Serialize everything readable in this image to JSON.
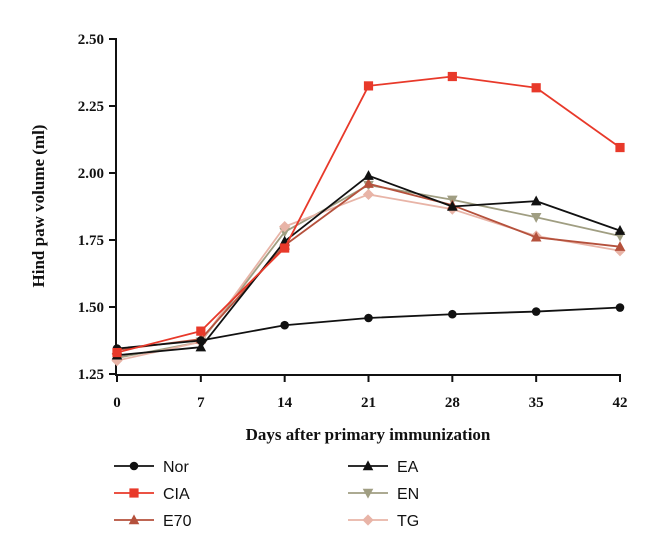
{
  "chart_data": {
    "type": "line",
    "xlabel": "Days after primary immunization",
    "ylabel": "Hind paw volume (ml)",
    "x": [
      0,
      7,
      14,
      21,
      28,
      35,
      42
    ],
    "x_ticks": [
      "0",
      "7",
      "14",
      "21",
      "28",
      "35",
      "42"
    ],
    "xlim": [
      0,
      42
    ],
    "y_ticks": [
      "1.25",
      "1.50",
      "1.75",
      "2.00",
      "2.25",
      "2.50"
    ],
    "ylim": [
      1.25,
      2.5
    ],
    "grid": false,
    "legend_position": "bottom",
    "series": [
      {
        "name": "Nor",
        "color": "#111111",
        "marker": "circle",
        "values": [
          1.345,
          1.375,
          1.432,
          1.459,
          1.473,
          1.483,
          1.498
        ]
      },
      {
        "name": "CIA",
        "color": "#e8392a",
        "marker": "square",
        "values": [
          1.33,
          1.41,
          1.72,
          2.325,
          2.36,
          2.318,
          2.095
        ]
      },
      {
        "name": "E70",
        "color": "#b5513c",
        "marker": "triangle-up",
        "values": [
          1.34,
          1.38,
          1.73,
          1.96,
          1.88,
          1.76,
          1.725
        ]
      },
      {
        "name": "EA",
        "color": "#111111",
        "marker": "triangle-up",
        "values": [
          1.32,
          1.35,
          1.745,
          1.99,
          1.875,
          1.895,
          1.785
        ]
      },
      {
        "name": "EN",
        "color": "#a09e82",
        "marker": "triangle-down",
        "values": [
          1.31,
          1.37,
          1.78,
          1.955,
          1.9,
          1.835,
          1.765
        ]
      },
      {
        "name": "TG",
        "color": "#e8b4a7",
        "marker": "diamond",
        "values": [
          1.3,
          1.37,
          1.8,
          1.92,
          1.865,
          1.765,
          1.71
        ]
      }
    ]
  }
}
